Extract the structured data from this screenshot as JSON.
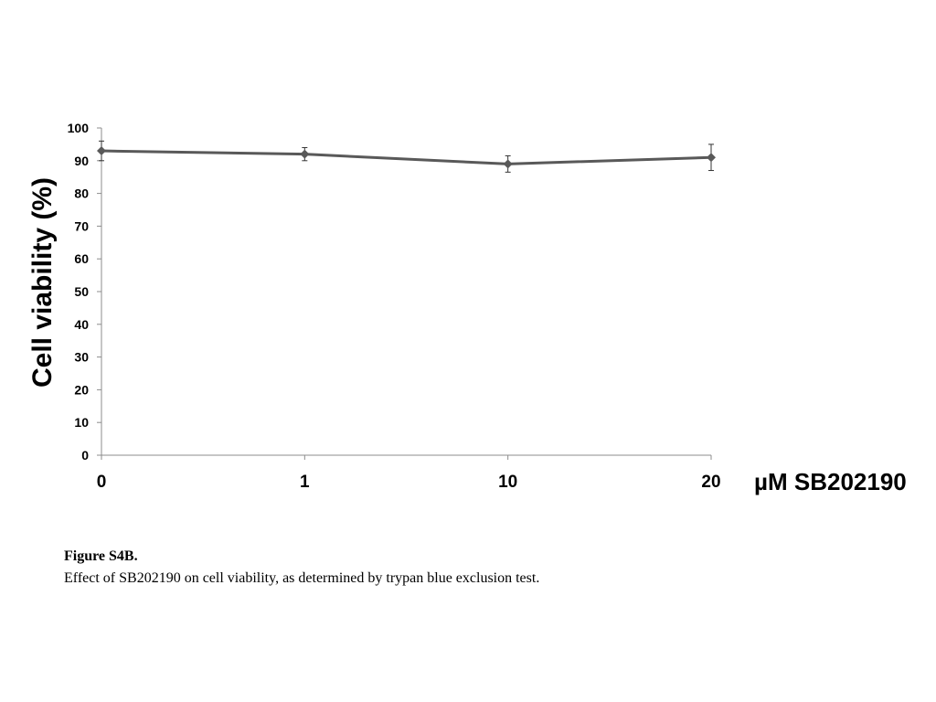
{
  "chart_data": {
    "type": "line",
    "xlabel": "µM SB202190",
    "ylabel": "Cell viability (%)",
    "categories": [
      "0",
      "1",
      "10",
      "20"
    ],
    "ylim": [
      0,
      100
    ],
    "yticks": [
      "0",
      "10",
      "20",
      "30",
      "40",
      "50",
      "60",
      "70",
      "80",
      "90",
      "100"
    ],
    "grid": false,
    "series": [
      {
        "values": [
          93,
          92,
          89,
          91
        ],
        "errors": [
          3,
          2,
          2.5,
          4
        ]
      }
    ],
    "colors": {
      "line": "#595959",
      "axis": "#8c8c8c"
    }
  },
  "caption": {
    "title": "Figure S4B.",
    "text": "Effect of SB202190 on cell viability, as determined by trypan blue exclusion test."
  }
}
